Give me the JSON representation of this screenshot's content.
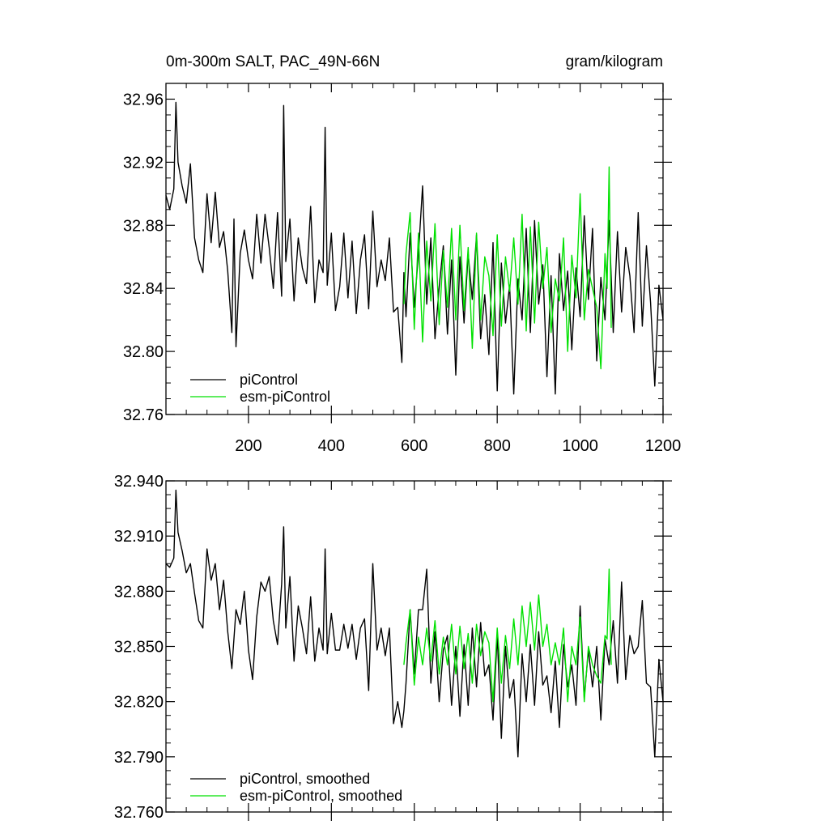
{
  "chart_data": [
    {
      "type": "line",
      "title": "0m-300m SALT, PAC_49N-66N",
      "units": "gram/kilogram",
      "xlim": [
        1,
        1200
      ],
      "ylim": [
        32.76,
        32.97
      ],
      "xticks": [
        200,
        400,
        600,
        800,
        1000,
        1200
      ],
      "xtick_labels": [
        "200",
        "400",
        "600",
        "800",
        "1000",
        "1200"
      ],
      "yticks": [
        32.76,
        32.8,
        32.84,
        32.88,
        32.92,
        32.96
      ],
      "ytick_labels": [
        "32.76",
        "32.80",
        "32.84",
        "32.88",
        "32.92",
        "32.96"
      ],
      "legend_position": "bottom-left",
      "series": [
        {
          "name": "piControl",
          "color": "#000000",
          "x": [
            1,
            10,
            20,
            25,
            30,
            40,
            50,
            60,
            70,
            80,
            90,
            100,
            110,
            120,
            130,
            140,
            150,
            160,
            165,
            170,
            180,
            190,
            200,
            210,
            220,
            230,
            240,
            250,
            260,
            270,
            280,
            285,
            290,
            300,
            310,
            320,
            330,
            340,
            350,
            360,
            370,
            380,
            385,
            390,
            400,
            410,
            420,
            430,
            440,
            450,
            460,
            470,
            480,
            490,
            500,
            510,
            520,
            530,
            540,
            550,
            560,
            570,
            575,
            580,
            590,
            600,
            610,
            620,
            630,
            640,
            650,
            660,
            670,
            680,
            690,
            700,
            710,
            720,
            730,
            740,
            750,
            760,
            770,
            780,
            790,
            800,
            810,
            820,
            830,
            840,
            850,
            860,
            870,
            880,
            890,
            900,
            910,
            920,
            930,
            940,
            950,
            960,
            970,
            980,
            990,
            1000,
            1010,
            1020,
            1030,
            1040,
            1050,
            1060,
            1070,
            1080,
            1090,
            1100,
            1110,
            1120,
            1130,
            1140,
            1150,
            1160,
            1170,
            1180,
            1190,
            1200
          ],
          "values": [
            32.899,
            32.89,
            32.903,
            32.958,
            32.92,
            32.905,
            32.894,
            32.919,
            32.872,
            32.858,
            32.85,
            32.9,
            32.869,
            32.901,
            32.866,
            32.876,
            32.851,
            32.812,
            32.884,
            32.803,
            32.862,
            32.877,
            32.858,
            32.846,
            32.887,
            32.856,
            32.887,
            32.866,
            32.84,
            32.888,
            32.835,
            32.956,
            32.857,
            32.884,
            32.832,
            32.872,
            32.853,
            32.843,
            32.892,
            32.831,
            32.858,
            32.85,
            32.942,
            32.842,
            32.875,
            32.826,
            32.841,
            32.875,
            32.834,
            32.87,
            32.824,
            32.858,
            32.874,
            32.827,
            32.889,
            32.841,
            32.858,
            32.845,
            32.872,
            32.825,
            32.828,
            32.793,
            32.85,
            32.822,
            32.875,
            32.828,
            32.862,
            32.905,
            32.83,
            32.872,
            32.808,
            32.841,
            32.867,
            32.811,
            32.858,
            32.785,
            32.86,
            32.818,
            32.862,
            32.833,
            32.874,
            32.808,
            32.836,
            32.798,
            32.869,
            32.775,
            32.856,
            32.818,
            32.842,
            32.773,
            32.846,
            32.82,
            32.878,
            32.812,
            32.883,
            32.83,
            32.855,
            32.784,
            32.848,
            32.773,
            32.862,
            32.826,
            32.851,
            32.801,
            32.853,
            32.822,
            32.886,
            32.833,
            32.878,
            32.794,
            32.847,
            32.82,
            32.883,
            32.812,
            32.876,
            32.825,
            32.866,
            32.848,
            32.812,
            32.888,
            32.816,
            32.867,
            32.831,
            32.778,
            32.842,
            32.82
          ]
        },
        {
          "name": "esm-piControl",
          "color": "#00e100",
          "x": [
            575,
            580,
            590,
            600,
            610,
            620,
            630,
            640,
            650,
            660,
            670,
            680,
            690,
            700,
            710,
            720,
            730,
            740,
            750,
            760,
            770,
            780,
            790,
            800,
            810,
            820,
            830,
            840,
            850,
            860,
            870,
            880,
            890,
            900,
            910,
            920,
            930,
            940,
            950,
            960,
            970,
            980,
            990,
            1000,
            1010,
            1020,
            1030,
            1040,
            1050,
            1060,
            1065,
            1070,
            1075
          ],
          "values": [
            32.83,
            32.862,
            32.888,
            32.814,
            32.875,
            32.806,
            32.87,
            32.832,
            32.881,
            32.817,
            32.864,
            32.828,
            32.878,
            32.82,
            32.88,
            32.826,
            32.866,
            32.802,
            32.875,
            32.82,
            32.86,
            32.848,
            32.81,
            32.874,
            32.816,
            32.86,
            32.838,
            32.872,
            32.83,
            32.887,
            32.813,
            32.879,
            32.818,
            32.882,
            32.84,
            32.866,
            32.812,
            32.846,
            32.832,
            32.872,
            32.8,
            32.861,
            32.834,
            32.9,
            32.82,
            32.852,
            32.84,
            32.828,
            32.789,
            32.862,
            32.84,
            32.917,
            32.815
          ]
        }
      ]
    },
    {
      "type": "line",
      "xlim": [
        1,
        1200
      ],
      "ylim": [
        32.76,
        32.94
      ],
      "xticks": [
        200,
        400,
        600,
        800,
        1000,
        1200
      ],
      "yticks": [
        32.76,
        32.79,
        32.82,
        32.85,
        32.88,
        32.91,
        32.94
      ],
      "ytick_labels": [
        "32.760",
        "32.790",
        "32.820",
        "32.850",
        "32.880",
        "32.910",
        "32.940"
      ],
      "legend_position": "bottom-left",
      "series": [
        {
          "name": "piControl, smoothed",
          "color": "#000000",
          "x": [
            1,
            10,
            20,
            25,
            30,
            40,
            50,
            60,
            70,
            80,
            90,
            100,
            110,
            120,
            130,
            140,
            150,
            160,
            170,
            180,
            190,
            200,
            210,
            220,
            230,
            240,
            250,
            260,
            270,
            280,
            285,
            290,
            300,
            310,
            320,
            330,
            340,
            350,
            360,
            370,
            380,
            385,
            390,
            400,
            410,
            420,
            430,
            440,
            450,
            460,
            470,
            480,
            490,
            500,
            510,
            520,
            530,
            540,
            550,
            560,
            570,
            575,
            580,
            590,
            600,
            610,
            620,
            630,
            640,
            650,
            660,
            670,
            680,
            690,
            700,
            710,
            720,
            730,
            740,
            750,
            760,
            770,
            780,
            790,
            800,
            810,
            820,
            830,
            840,
            850,
            860,
            870,
            880,
            890,
            900,
            910,
            920,
            930,
            940,
            950,
            960,
            970,
            980,
            990,
            1000,
            1010,
            1020,
            1030,
            1040,
            1050,
            1060,
            1070,
            1080,
            1090,
            1100,
            1110,
            1120,
            1130,
            1140,
            1150,
            1160,
            1170,
            1180,
            1190,
            1200
          ],
          "values": [
            32.895,
            32.893,
            32.898,
            32.935,
            32.912,
            32.902,
            32.89,
            32.895,
            32.879,
            32.864,
            32.86,
            32.903,
            32.886,
            32.895,
            32.87,
            32.886,
            32.858,
            32.838,
            32.87,
            32.862,
            32.88,
            32.848,
            32.832,
            32.866,
            32.885,
            32.88,
            32.888,
            32.864,
            32.851,
            32.884,
            32.915,
            32.86,
            32.888,
            32.842,
            32.872,
            32.86,
            32.846,
            32.877,
            32.842,
            32.86,
            32.848,
            32.903,
            32.846,
            32.868,
            32.848,
            32.848,
            32.862,
            32.849,
            32.862,
            32.843,
            32.86,
            32.865,
            32.826,
            32.895,
            32.848,
            32.86,
            32.845,
            32.86,
            32.808,
            32.82,
            32.806,
            32.815,
            32.83,
            32.87,
            32.835,
            32.87,
            32.87,
            32.892,
            32.83,
            32.858,
            32.82,
            32.848,
            32.856,
            32.818,
            32.85,
            32.812,
            32.851,
            32.818,
            32.86,
            32.828,
            32.863,
            32.834,
            32.84,
            32.81,
            32.856,
            32.8,
            32.85,
            32.822,
            32.832,
            32.79,
            32.846,
            32.82,
            32.851,
            32.818,
            32.858,
            32.829,
            32.834,
            32.814,
            32.842,
            32.806,
            32.851,
            32.828,
            32.84,
            32.818,
            32.872,
            32.822,
            32.848,
            32.828,
            32.85,
            32.81,
            32.854,
            32.84,
            32.864,
            32.83,
            32.885,
            32.832,
            32.856,
            32.846,
            32.85,
            32.875,
            32.83,
            32.828,
            32.79,
            32.843,
            32.82
          ]
        },
        {
          "name": "esm-piControl, smoothed",
          "color": "#00e100",
          "x": [
            575,
            580,
            590,
            600,
            610,
            620,
            630,
            640,
            650,
            660,
            670,
            680,
            690,
            700,
            710,
            720,
            730,
            740,
            750,
            760,
            770,
            780,
            790,
            800,
            810,
            820,
            830,
            840,
            850,
            860,
            870,
            880,
            890,
            900,
            910,
            920,
            930,
            940,
            950,
            960,
            970,
            980,
            990,
            1000,
            1010,
            1020,
            1030,
            1040,
            1050,
            1060,
            1065,
            1070,
            1075
          ],
          "values": [
            32.84,
            32.852,
            32.87,
            32.829,
            32.855,
            32.84,
            32.86,
            32.842,
            32.864,
            32.835,
            32.855,
            32.84,
            32.862,
            32.835,
            32.861,
            32.838,
            32.857,
            32.83,
            32.862,
            32.845,
            32.858,
            32.852,
            32.82,
            32.86,
            32.83,
            32.856,
            32.838,
            32.865,
            32.84,
            32.872,
            32.85,
            32.874,
            32.848,
            32.878,
            32.85,
            32.862,
            32.84,
            32.852,
            32.84,
            32.86,
            32.82,
            32.85,
            32.84,
            32.866,
            32.82,
            32.85,
            32.84,
            32.834,
            32.83,
            32.856,
            32.854,
            32.892,
            32.84
          ]
        }
      ]
    }
  ]
}
